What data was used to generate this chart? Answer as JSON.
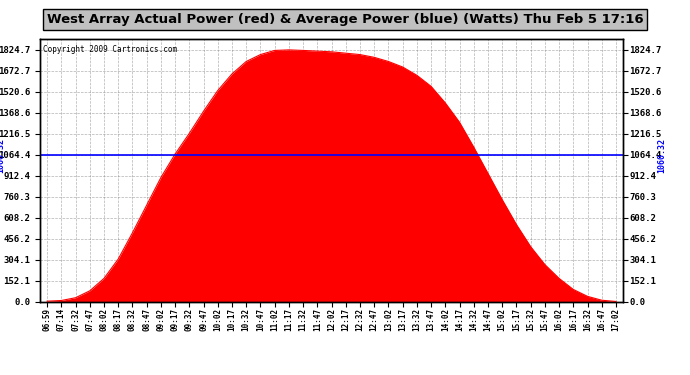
{
  "title": "West Array Actual Power (red) & Average Power (blue) (Watts) Thu Feb 5 17:16",
  "copyright": "Copyright 2009 Cartronics.com",
  "avg_power": 1060.32,
  "y_ticks": [
    0.0,
    152.1,
    304.1,
    456.2,
    608.2,
    760.3,
    912.4,
    1064.4,
    1216.5,
    1368.6,
    1520.6,
    1672.7,
    1824.7
  ],
  "ylim": [
    0,
    1900
  ],
  "time_labels": [
    "06:59",
    "07:14",
    "07:32",
    "07:47",
    "08:02",
    "08:17",
    "08:32",
    "08:47",
    "09:02",
    "09:17",
    "09:32",
    "09:47",
    "10:02",
    "10:17",
    "10:32",
    "10:47",
    "11:02",
    "11:17",
    "11:32",
    "11:47",
    "12:02",
    "12:17",
    "12:32",
    "12:47",
    "13:02",
    "13:17",
    "13:32",
    "13:47",
    "14:02",
    "14:17",
    "14:32",
    "14:47",
    "15:02",
    "15:17",
    "15:32",
    "15:47",
    "16:02",
    "16:17",
    "16:32",
    "16:47",
    "17:02"
  ],
  "power_values": [
    5,
    10,
    30,
    80,
    170,
    310,
    500,
    700,
    900,
    1070,
    1220,
    1380,
    1530,
    1650,
    1740,
    1790,
    1820,
    1824,
    1820,
    1815,
    1810,
    1800,
    1790,
    1770,
    1740,
    1700,
    1640,
    1560,
    1440,
    1300,
    1120,
    930,
    740,
    560,
    400,
    270,
    170,
    90,
    40,
    12,
    3
  ],
  "red_color": "#FF0000",
  "blue_color": "#0000FF",
  "bg_color": "#FFFFFF",
  "grid_color": "#808080",
  "border_color": "#000000",
  "title_bg": "#C0C0C0"
}
